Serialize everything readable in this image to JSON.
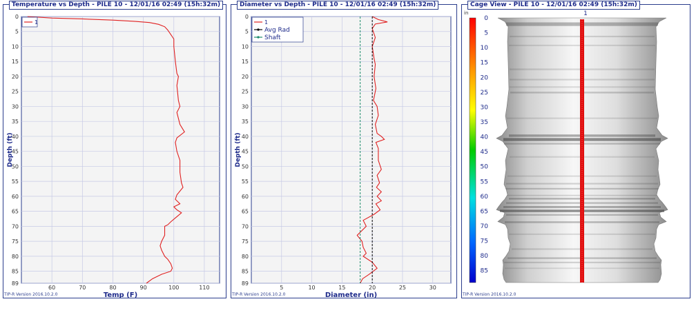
{
  "version_label": "TIP-R Version 2016.10.2.0",
  "panels": {
    "temperature": {
      "title": "Temperature vs Depth - PILE 10 - 12/01/16 02:49 (15h:32m)"
    },
    "diameter": {
      "title": "Diameter vs Depth - PILE 10 - 12/01/16 02:49 (15h:32m)"
    },
    "cage": {
      "title": "Cage View - PILE 10 - 12/01/16 02:49 (15h:32m)",
      "unit": "in",
      "wire_label": "1"
    }
  },
  "chart_data": [
    {
      "type": "line",
      "title": "Temperature vs Depth - PILE 10 - 12/01/16 02:49 (15h:32m)",
      "xlabel": "Temp (F)",
      "ylabel": "Depth (ft)",
      "xlim": [
        50,
        115
      ],
      "ylim": [
        0,
        89
      ],
      "y_inverted": true,
      "xticks": [
        60,
        70,
        80,
        90,
        100,
        110
      ],
      "yticks": [
        0,
        5,
        10,
        15,
        20,
        25,
        30,
        35,
        40,
        45,
        50,
        55,
        60,
        65,
        70,
        75,
        80,
        85,
        89
      ],
      "legend": "top-left",
      "grid": true,
      "series": [
        {
          "name": "1",
          "color": "#e02020",
          "x": [
            52,
            60,
            70,
            80,
            87,
            92,
            95,
            97,
            98,
            99,
            100,
            100,
            100.5,
            101,
            101.5,
            101,
            101.5,
            102,
            101,
            102,
            103.5,
            101,
            100.5,
            101,
            102,
            102,
            102.5,
            103,
            101,
            100.5,
            102,
            100,
            101,
            102.5,
            99,
            98,
            97,
            97,
            96,
            95.5,
            96,
            97,
            98,
            99,
            99.5,
            99,
            96,
            93,
            91
          ],
          "y": [
            0,
            0.5,
            0.8,
            1.2,
            1.6,
            2.0,
            2.6,
            3.4,
            4.5,
            6.0,
            7.5,
            10,
            15,
            19,
            20,
            23,
            28,
            30,
            32,
            36,
            38.5,
            40.5,
            42,
            45,
            48,
            52,
            55.5,
            57,
            59.5,
            61,
            62.5,
            63.5,
            64.5,
            65.5,
            68.5,
            69.5,
            70,
            73,
            75,
            76.5,
            78,
            80,
            81,
            82.5,
            84,
            85,
            86,
            87.5,
            89
          ]
        }
      ]
    },
    {
      "type": "line",
      "title": "Diameter vs Depth - PILE 10 - 12/01/16 02:49 (15h:32m)",
      "xlabel": "Diameter (in)",
      "ylabel": "Depth (ft)",
      "xlim": [
        0,
        33
      ],
      "ylim": [
        0,
        89
      ],
      "y_inverted": true,
      "xticks": [
        5,
        10,
        15,
        20,
        25,
        30
      ],
      "yticks": [
        0,
        5,
        10,
        15,
        20,
        25,
        30,
        35,
        40,
        45,
        50,
        55,
        60,
        65,
        70,
        75,
        80,
        85,
        89
      ],
      "legend": "top-left",
      "grid": true,
      "series": [
        {
          "name": "1",
          "color": "#e02020",
          "x": [
            20,
            21,
            22.5,
            20.5,
            20,
            20.5,
            20,
            20.3,
            20.5,
            20.3,
            20.6,
            20.2,
            20.8,
            21,
            20.5,
            20.8,
            21.5,
            22,
            20.6,
            21,
            21,
            21.5,
            20.8,
            21.2,
            20.7,
            21.5,
            20.8,
            21.5,
            20.6,
            21.3,
            20.3,
            18.5,
            19,
            17.5,
            18.3,
            18.5,
            19,
            18.5,
            20,
            20.8,
            19.5,
            18.4,
            18
          ],
          "y": [
            0,
            1,
            1.8,
            2.5,
            4,
            7,
            10,
            14,
            16,
            20,
            24,
            28,
            30,
            33,
            36,
            39,
            40,
            41,
            42,
            44,
            48,
            51,
            53,
            55.5,
            57,
            58.5,
            60,
            61.5,
            62.5,
            64.5,
            66,
            68,
            70,
            73,
            75,
            77,
            79,
            80,
            82,
            84,
            86,
            87.5,
            89
          ]
        },
        {
          "name": "Avg Rad",
          "color": "#000000",
          "x": [
            20,
            20
          ],
          "y": [
            0,
            89
          ]
        },
        {
          "name": "Shaft",
          "color": "#1a8a6a",
          "x": [
            18,
            18
          ],
          "y": [
            0,
            89
          ]
        }
      ]
    },
    {
      "type": "heatmap",
      "title": "Cage View - PILE 10 - 12/01/16 02:49 (15h:32m)",
      "unit": "in",
      "scale_ticks": [
        0,
        5,
        10,
        15,
        20,
        25,
        30,
        35,
        40,
        45,
        50,
        55,
        60,
        65,
        70,
        75,
        80,
        85
      ],
      "ylim": [
        0,
        89
      ],
      "wire_labels": [
        "1"
      ]
    }
  ]
}
